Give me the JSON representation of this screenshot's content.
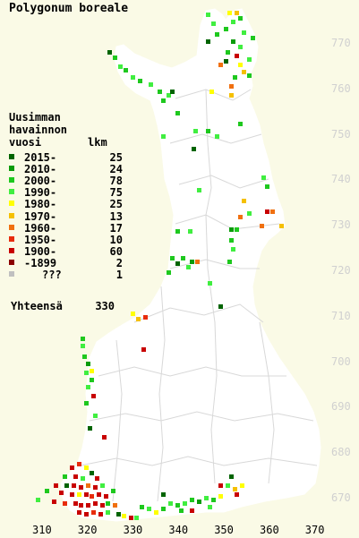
{
  "title": "Polygonum boreale",
  "legend": {
    "header_line1": "Uusimman",
    "header_line2": "havainnon",
    "header_col1": "vuosi",
    "header_col2": "lkm",
    "items": [
      {
        "label": "2015-",
        "count": "25",
        "color": "#006400"
      },
      {
        "label": "2010-",
        "count": "24",
        "color": "#0a9b0a"
      },
      {
        "label": "2000-",
        "count": "78",
        "color": "#1ec81e"
      },
      {
        "label": "1990-",
        "count": "75",
        "color": "#40ee40"
      },
      {
        "label": "1980-",
        "count": "25",
        "color": "#ffff00"
      },
      {
        "label": "1970-",
        "count": "13",
        "color": "#f5c000"
      },
      {
        "label": "1960-",
        "count": "17",
        "color": "#f07010"
      },
      {
        "label": "1950-",
        "count": "10",
        "color": "#e82c0c"
      },
      {
        "label": "1900-",
        "count": "60",
        "color": "#c80000"
      },
      {
        "label": "-1899",
        "count": "2",
        "color": "#8b0000"
      },
      {
        "label": "???",
        "count": "1",
        "color": "#c0c0c0"
      }
    ],
    "total_label": "Yhteensä",
    "total_count": "330"
  },
  "grid": {
    "y_labels": [
      "770",
      "760",
      "750",
      "740",
      "730",
      "720",
      "710",
      "700",
      "690",
      "680",
      "670"
    ],
    "x_labels": [
      "310",
      "320",
      "330",
      "340",
      "350",
      "360",
      "370"
    ]
  }
}
